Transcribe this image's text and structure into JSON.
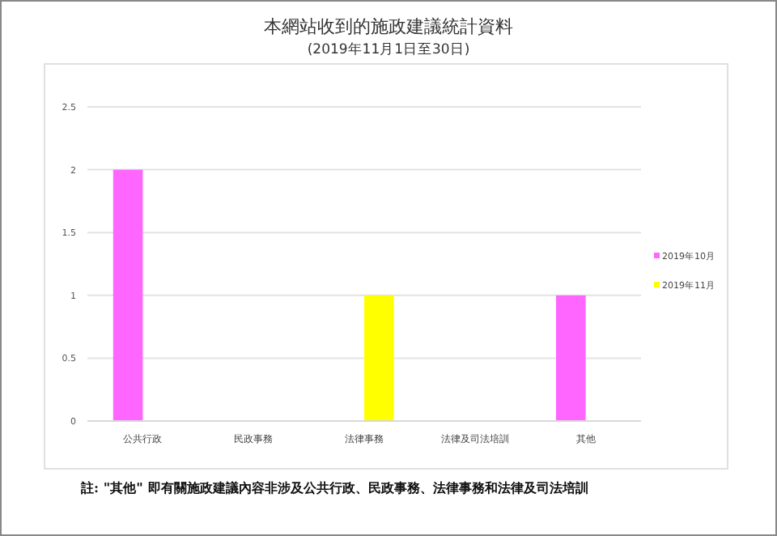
{
  "chart_data": {
    "type": "bar",
    "title": "本網站收到的施政建議統計資料",
    "subtitle": "(2019年11月1日至30日)",
    "categories": [
      "公共行政",
      "民政事務",
      "法律事務",
      "法律及司法培訓",
      "其他"
    ],
    "series": [
      {
        "name": "2019年10月",
        "color": "#ff66ff",
        "values": [
          2,
          0,
          0,
          0,
          1
        ]
      },
      {
        "name": "2019年11月",
        "color": "#ffff00",
        "values": [
          0,
          0,
          1,
          0,
          0
        ]
      }
    ],
    "ylim": [
      0,
      2.5
    ],
    "yticks": [
      0,
      0.5,
      1,
      1.5,
      2,
      2.5
    ],
    "grid": "y",
    "legend": "right",
    "annotations": [
      "註: \"其他\" 即有關施政建議內容非涉及公共行政、民政事務、法律事務和法律及司法培訓"
    ]
  }
}
